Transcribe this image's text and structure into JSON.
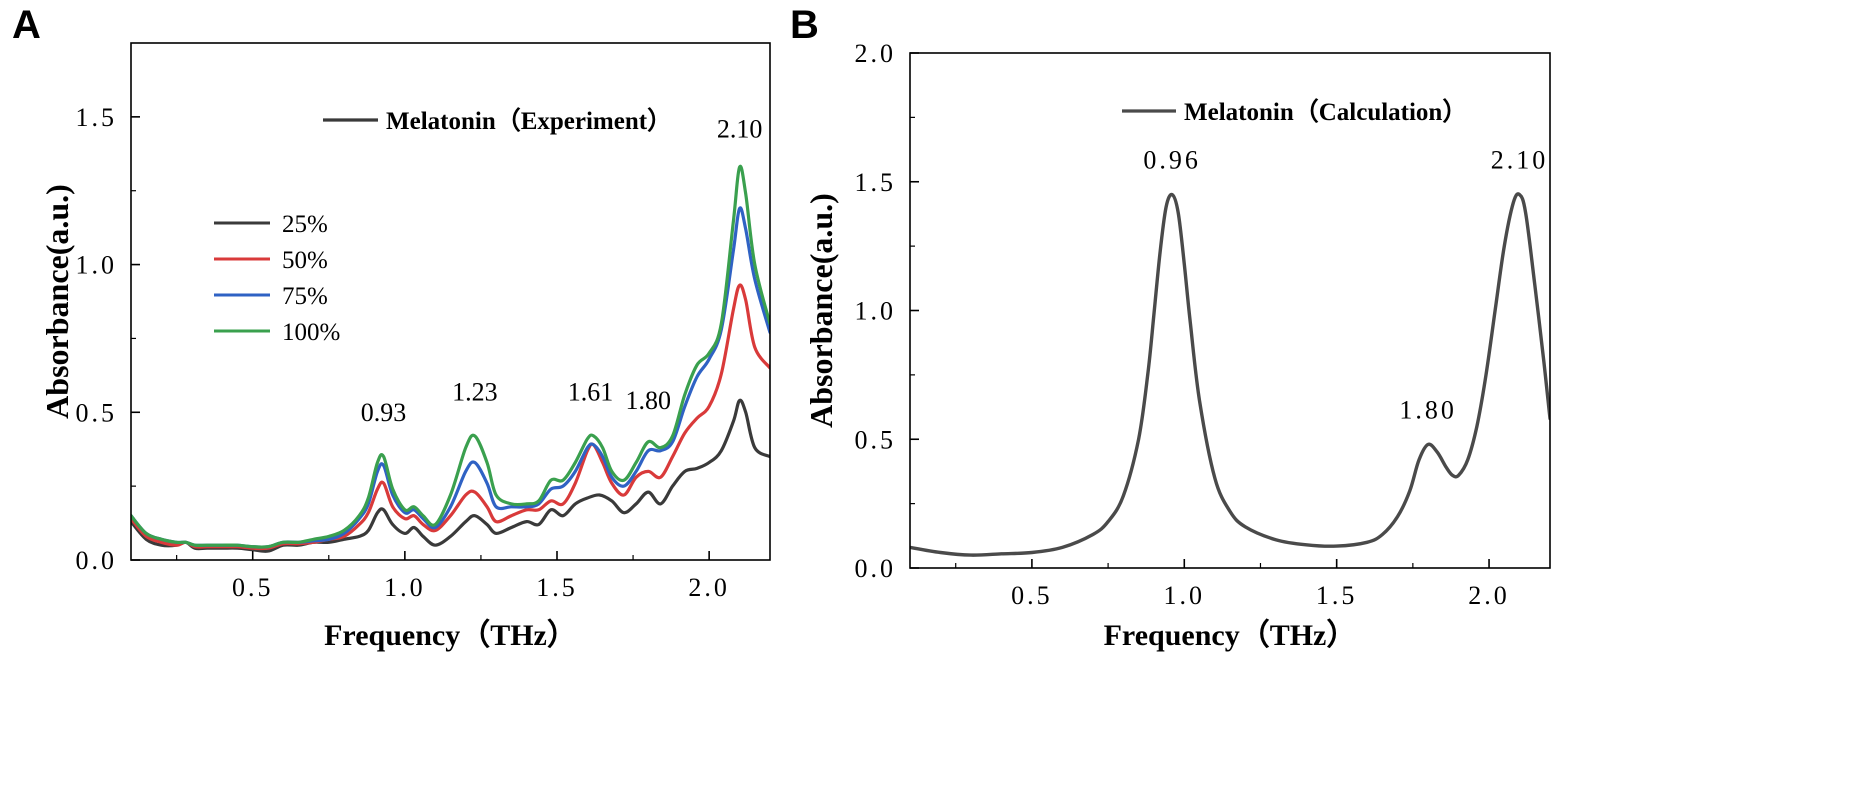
{
  "colors": {
    "25%": "#3a3a3a",
    "50%": "#d93a3a",
    "75%": "#2f62c4",
    "100%": "#3aa04e",
    "calc": "#4a4a4a"
  },
  "chart_data": [
    {
      "type": "line",
      "panel": "A",
      "xlabel": "Frequency（THz）",
      "ylabel": "Absorbance(a.u.)",
      "xlim": [
        0.1,
        2.2
      ],
      "ylim": [
        0.0,
        1.75
      ],
      "x_ticks": [
        0.5,
        1.0,
        1.5,
        2.0
      ],
      "x_tick_labels": [
        "0.5",
        "1.0",
        "1.5",
        "2.0"
      ],
      "y_ticks": [
        0.0,
        0.5,
        1.0,
        1.5
      ],
      "y_tick_labels": [
        "0.0",
        "0.5",
        "1.0",
        "1.5"
      ],
      "legend_title": "Melatonin（Experiment）",
      "peaks": [
        {
          "label": "0.93",
          "x": 0.93,
          "y": 0.43
        },
        {
          "label": "1.23",
          "x": 1.23,
          "y": 0.5
        },
        {
          "label": "1.61",
          "x": 1.61,
          "y": 0.5
        },
        {
          "label": "1.80",
          "x": 1.8,
          "y": 0.47
        },
        {
          "label": "2.10",
          "x": 2.1,
          "y": 1.39
        }
      ],
      "series": [
        {
          "name": "25%",
          "x": [
            0.1,
            0.15,
            0.2,
            0.25,
            0.28,
            0.31,
            0.35,
            0.4,
            0.45,
            0.5,
            0.55,
            0.6,
            0.65,
            0.7,
            0.75,
            0.8,
            0.85,
            0.88,
            0.91,
            0.93,
            0.96,
            1.0,
            1.03,
            1.06,
            1.1,
            1.15,
            1.2,
            1.23,
            1.27,
            1.3,
            1.35,
            1.4,
            1.44,
            1.48,
            1.52,
            1.56,
            1.6,
            1.64,
            1.68,
            1.72,
            1.76,
            1.8,
            1.84,
            1.88,
            1.92,
            1.96,
            2.0,
            2.04,
            2.08,
            2.1,
            2.12,
            2.15,
            2.2
          ],
          "y": [
            0.13,
            0.07,
            0.05,
            0.05,
            0.06,
            0.04,
            0.04,
            0.04,
            0.04,
            0.035,
            0.03,
            0.05,
            0.05,
            0.06,
            0.06,
            0.07,
            0.08,
            0.1,
            0.16,
            0.17,
            0.12,
            0.09,
            0.11,
            0.08,
            0.05,
            0.08,
            0.13,
            0.15,
            0.12,
            0.09,
            0.11,
            0.13,
            0.12,
            0.17,
            0.15,
            0.19,
            0.21,
            0.22,
            0.2,
            0.16,
            0.19,
            0.23,
            0.19,
            0.25,
            0.3,
            0.31,
            0.33,
            0.37,
            0.47,
            0.54,
            0.5,
            0.38,
            0.35
          ]
        },
        {
          "name": "50%",
          "x": [
            0.1,
            0.15,
            0.2,
            0.25,
            0.28,
            0.31,
            0.35,
            0.4,
            0.45,
            0.5,
            0.55,
            0.6,
            0.65,
            0.7,
            0.75,
            0.8,
            0.85,
            0.88,
            0.91,
            0.93,
            0.96,
            1.0,
            1.03,
            1.06,
            1.1,
            1.15,
            1.2,
            1.23,
            1.27,
            1.3,
            1.35,
            1.4,
            1.44,
            1.48,
            1.52,
            1.56,
            1.6,
            1.62,
            1.65,
            1.68,
            1.72,
            1.76,
            1.8,
            1.84,
            1.88,
            1.92,
            1.96,
            2.0,
            2.04,
            2.08,
            2.1,
            2.12,
            2.15,
            2.2
          ],
          "y": [
            0.14,
            0.08,
            0.06,
            0.05,
            0.06,
            0.045,
            0.045,
            0.045,
            0.045,
            0.04,
            0.04,
            0.055,
            0.055,
            0.06,
            0.07,
            0.08,
            0.12,
            0.16,
            0.24,
            0.26,
            0.18,
            0.14,
            0.15,
            0.12,
            0.1,
            0.15,
            0.22,
            0.23,
            0.18,
            0.13,
            0.15,
            0.17,
            0.17,
            0.2,
            0.19,
            0.26,
            0.37,
            0.39,
            0.33,
            0.26,
            0.22,
            0.28,
            0.3,
            0.28,
            0.35,
            0.43,
            0.48,
            0.52,
            0.63,
            0.85,
            0.93,
            0.88,
            0.72,
            0.65
          ]
        },
        {
          "name": "75%",
          "x": [
            0.1,
            0.15,
            0.2,
            0.25,
            0.28,
            0.31,
            0.35,
            0.4,
            0.45,
            0.5,
            0.55,
            0.6,
            0.65,
            0.7,
            0.75,
            0.8,
            0.85,
            0.88,
            0.91,
            0.93,
            0.96,
            1.0,
            1.03,
            1.06,
            1.1,
            1.15,
            1.2,
            1.23,
            1.27,
            1.3,
            1.35,
            1.4,
            1.44,
            1.48,
            1.52,
            1.56,
            1.6,
            1.62,
            1.65,
            1.68,
            1.72,
            1.76,
            1.8,
            1.84,
            1.88,
            1.92,
            1.96,
            2.0,
            2.04,
            2.08,
            2.1,
            2.12,
            2.15,
            2.2
          ],
          "y": [
            0.15,
            0.09,
            0.07,
            0.06,
            0.06,
            0.05,
            0.05,
            0.05,
            0.05,
            0.045,
            0.045,
            0.06,
            0.06,
            0.065,
            0.07,
            0.09,
            0.14,
            0.19,
            0.3,
            0.32,
            0.22,
            0.16,
            0.17,
            0.14,
            0.11,
            0.18,
            0.3,
            0.33,
            0.26,
            0.18,
            0.18,
            0.18,
            0.19,
            0.24,
            0.25,
            0.3,
            0.38,
            0.39,
            0.35,
            0.28,
            0.25,
            0.3,
            0.37,
            0.37,
            0.4,
            0.52,
            0.62,
            0.68,
            0.78,
            1.05,
            1.19,
            1.12,
            0.95,
            0.77
          ]
        },
        {
          "name": "100%",
          "x": [
            0.1,
            0.15,
            0.2,
            0.25,
            0.28,
            0.31,
            0.35,
            0.4,
            0.45,
            0.5,
            0.55,
            0.6,
            0.65,
            0.7,
            0.75,
            0.8,
            0.85,
            0.88,
            0.91,
            0.93,
            0.96,
            1.0,
            1.03,
            1.06,
            1.1,
            1.15,
            1.2,
            1.23,
            1.27,
            1.3,
            1.35,
            1.4,
            1.44,
            1.48,
            1.52,
            1.56,
            1.6,
            1.62,
            1.65,
            1.68,
            1.72,
            1.76,
            1.8,
            1.84,
            1.88,
            1.92,
            1.96,
            2.0,
            2.04,
            2.08,
            2.1,
            2.12,
            2.15,
            2.2
          ],
          "y": [
            0.15,
            0.09,
            0.07,
            0.06,
            0.06,
            0.05,
            0.05,
            0.05,
            0.05,
            0.045,
            0.045,
            0.06,
            0.06,
            0.07,
            0.08,
            0.1,
            0.15,
            0.21,
            0.33,
            0.35,
            0.24,
            0.17,
            0.18,
            0.15,
            0.12,
            0.22,
            0.38,
            0.42,
            0.33,
            0.22,
            0.19,
            0.19,
            0.2,
            0.27,
            0.27,
            0.33,
            0.41,
            0.42,
            0.38,
            0.3,
            0.27,
            0.33,
            0.4,
            0.38,
            0.42,
            0.56,
            0.66,
            0.7,
            0.8,
            1.15,
            1.33,
            1.24,
            1.0,
            0.8
          ]
        }
      ]
    },
    {
      "type": "line",
      "panel": "B",
      "xlabel": "Frequency（THz）",
      "ylabel": "Absorbance(a.u.)",
      "xlim": [
        0.1,
        2.2
      ],
      "ylim": [
        0.0,
        2.0
      ],
      "x_ticks": [
        0.5,
        1.0,
        1.5,
        2.0
      ],
      "x_tick_labels": [
        "0.5",
        "1.0",
        "1.5",
        "2.0"
      ],
      "y_ticks": [
        0.0,
        0.5,
        1.0,
        1.5,
        2.0
      ],
      "y_tick_labels": [
        "0.0",
        "0.5",
        "1.0",
        "1.5",
        "2.0"
      ],
      "legend_title": "Melatonin（Calculation）",
      "peaks": [
        {
          "label": "0.96",
          "x": 0.96,
          "y": 1.52
        },
        {
          "label": "1.80",
          "x": 1.8,
          "y": 0.55
        },
        {
          "label": "2.10",
          "x": 2.1,
          "y": 1.52
        }
      ],
      "series": [
        {
          "name": "Melatonin (Calculation)",
          "x": [
            0.1,
            0.2,
            0.3,
            0.4,
            0.5,
            0.6,
            0.7,
            0.75,
            0.8,
            0.85,
            0.88,
            0.9,
            0.92,
            0.94,
            0.96,
            0.98,
            1.0,
            1.02,
            1.05,
            1.1,
            1.15,
            1.2,
            1.3,
            1.4,
            1.5,
            1.6,
            1.65,
            1.7,
            1.74,
            1.77,
            1.8,
            1.83,
            1.86,
            1.88,
            1.9,
            1.93,
            1.96,
            1.99,
            2.02,
            2.05,
            2.08,
            2.1,
            2.12,
            2.15,
            2.18,
            2.2
          ],
          "y": [
            0.08,
            0.06,
            0.05,
            0.055,
            0.06,
            0.08,
            0.13,
            0.18,
            0.28,
            0.5,
            0.75,
            0.98,
            1.22,
            1.4,
            1.45,
            1.38,
            1.18,
            0.95,
            0.65,
            0.35,
            0.22,
            0.16,
            0.11,
            0.09,
            0.085,
            0.1,
            0.13,
            0.2,
            0.3,
            0.42,
            0.48,
            0.45,
            0.39,
            0.36,
            0.36,
            0.42,
            0.55,
            0.75,
            1.0,
            1.25,
            1.42,
            1.45,
            1.38,
            1.1,
            0.8,
            0.58
          ]
        }
      ]
    }
  ]
}
